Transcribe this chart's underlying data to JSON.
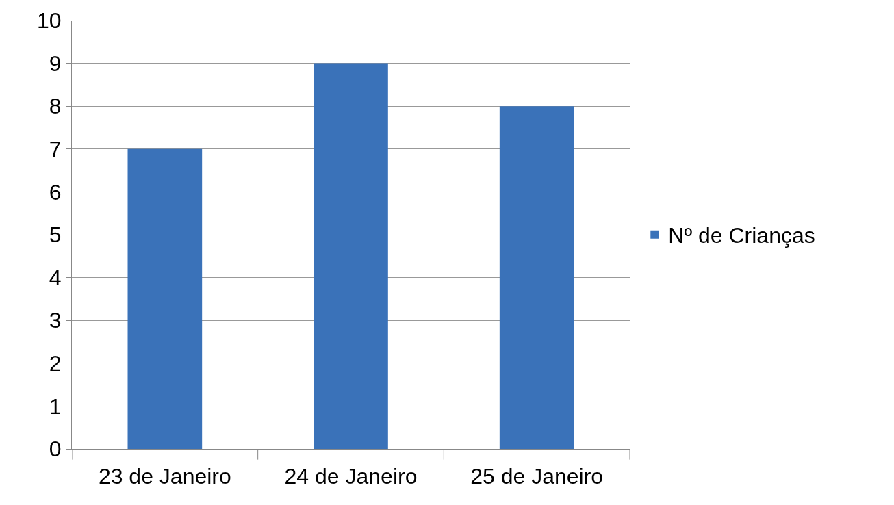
{
  "chart_data": {
    "type": "bar",
    "categories": [
      "23 de Janeiro",
      "24 de Janeiro",
      "25 de Janeiro"
    ],
    "series": [
      {
        "name": "Nº de Crianças",
        "color": "#3a72b9",
        "values": [
          7,
          9,
          8
        ]
      }
    ],
    "ylim": [
      0,
      10
    ],
    "yticks": [
      0,
      1,
      2,
      3,
      4,
      5,
      6,
      7,
      8,
      9,
      10
    ],
    "grid": "y",
    "legend": "right"
  }
}
